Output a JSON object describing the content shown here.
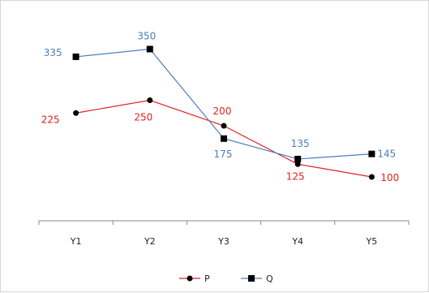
{
  "chart_data": {
    "type": "line",
    "categories": [
      "Y1",
      "Y2",
      "Y3",
      "Y4",
      "Y5"
    ],
    "series": [
      {
        "name": "P",
        "values": [
          225,
          250,
          200,
          125,
          100
        ],
        "color": "#e02020",
        "marker": "circle"
      },
      {
        "name": "Q",
        "values": [
          335,
          350,
          175,
          135,
          145
        ],
        "color": "#4a7ebb",
        "marker": "square"
      }
    ],
    "title": "",
    "xlabel": "",
    "ylabel": "",
    "y_axis_visible": false,
    "grid": false,
    "legend": "bottom-center",
    "data_labels": true
  }
}
